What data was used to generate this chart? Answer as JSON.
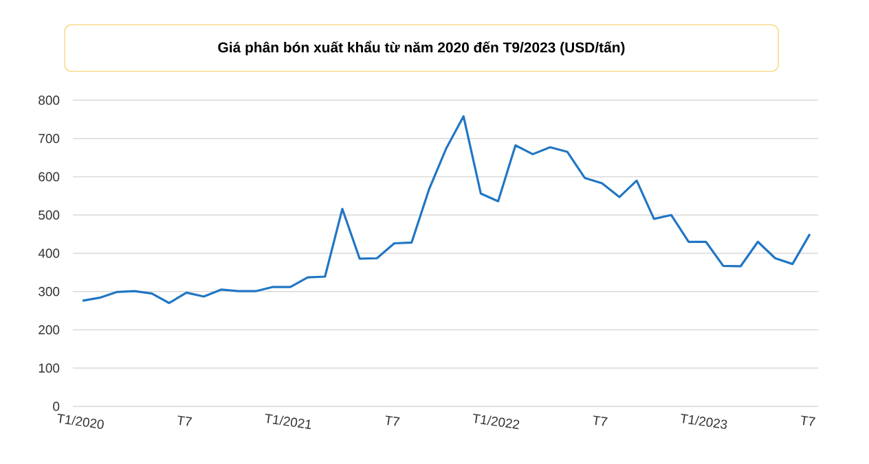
{
  "chart_data": {
    "type": "line",
    "title": "Giá phân bón xuất khẩu từ năm 2020 đến T9/2023 (USD/tấn)",
    "categories": [
      "T1/2020",
      null,
      null,
      null,
      null,
      null,
      "T7",
      null,
      null,
      null,
      null,
      null,
      "T1/2021",
      null,
      null,
      null,
      null,
      null,
      "T7",
      null,
      null,
      null,
      null,
      null,
      "T1/2022",
      null,
      null,
      null,
      null,
      null,
      "T7",
      null,
      null,
      null,
      null,
      null,
      "T1/2023",
      null,
      null,
      null,
      null,
      null,
      "T7"
    ],
    "series": [
      {
        "color": "#2176c4",
        "values": [
          276,
          284,
          299,
          301,
          295,
          270,
          297,
          287,
          305,
          301,
          301,
          312,
          312,
          337,
          339,
          516,
          386,
          387,
          426,
          428,
          566,
          674,
          758,
          556,
          536,
          682,
          659,
          677,
          665,
          597,
          583,
          547,
          590,
          490,
          500,
          430,
          430,
          367,
          366,
          430,
          387,
          372,
          450
        ]
      }
    ],
    "ylim": [
      0,
      800
    ],
    "yticks": [
      0,
      100,
      200,
      300,
      400,
      500,
      600,
      700,
      800
    ],
    "grid": "y",
    "marker": "none",
    "line_style": "solid"
  }
}
